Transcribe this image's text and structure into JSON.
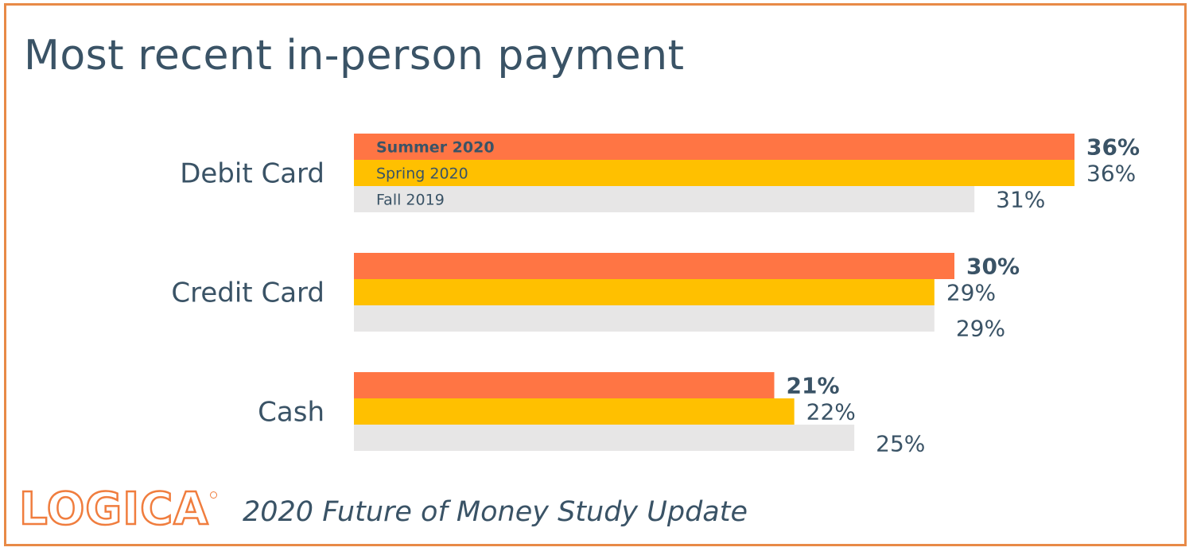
{
  "title": "Most recent in-person payment",
  "footer": {
    "logo": "LOGICA",
    "subtitle": "2020 Future of Money Study Update"
  },
  "chart_data": {
    "type": "bar",
    "orientation": "horizontal",
    "title": "Most recent in-person payment",
    "categories": [
      "Debit Card",
      "Credit Card",
      "Cash"
    ],
    "series": [
      {
        "name": "Summer 2020",
        "values": [
          36,
          30,
          21
        ],
        "color": "#FF7544",
        "label_bold": true
      },
      {
        "name": "Spring 2020",
        "values": [
          36,
          29,
          22
        ],
        "color": "#FFC000",
        "label_bold": false
      },
      {
        "name": "Fall 2019",
        "values": [
          31,
          29,
          25
        ],
        "color": "#E7E6E6",
        "label_bold": false
      }
    ],
    "value_suffix": "%",
    "xlim": [
      0,
      36
    ],
    "grid": false,
    "legend": "inside-first-category-bars",
    "colors": {
      "label_text": "#3A5366",
      "frame": "#E88A47"
    }
  }
}
